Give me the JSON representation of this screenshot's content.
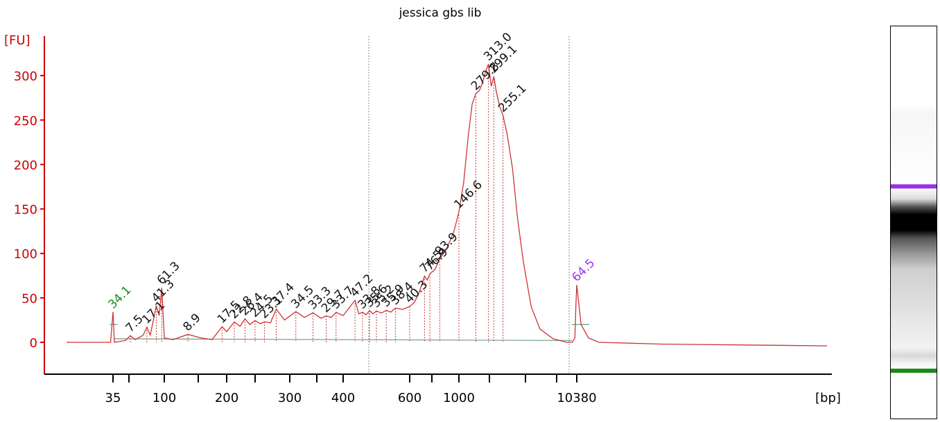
{
  "chart_data": {
    "type": "line",
    "title": "jessica gbs lib",
    "ylabel": "[FU]",
    "xlabel": "[bp]",
    "ylim": [
      -35,
      340
    ],
    "y_ticks": [
      0,
      50,
      100,
      150,
      200,
      250,
      300
    ],
    "x_tick_labels": [
      "35",
      "100",
      "200",
      "300",
      "400",
      "600",
      "1000",
      "10380"
    ],
    "grid": false,
    "colors": {
      "trace": "#cc3333",
      "axis": "#cc0000",
      "baseline": "#6a9a8a",
      "lower_marker": "#1a8a1a",
      "upper_marker": "#9933ee",
      "label": "#111111"
    },
    "peak_labels": [
      {
        "label": "34.1",
        "size_bp": 35,
        "fu": 34.1,
        "color": "green"
      },
      {
        "label": "7.5",
        "size_bp": 50,
        "fu": 7.5
      },
      {
        "label": "17.1",
        "size_bp": 70,
        "fu": 17.1
      },
      {
        "label": "41.3",
        "size_bp": 85,
        "fu": 41.3
      },
      {
        "label": "61.3",
        "size_bp": 95,
        "fu": 61.3
      },
      {
        "label": "8.9",
        "size_bp": 130,
        "fu": 8.9
      },
      {
        "label": "17.5",
        "size_bp": 190,
        "fu": 17.5
      },
      {
        "label": "22.8",
        "size_bp": 210,
        "fu": 22.8
      },
      {
        "label": "26.4",
        "size_bp": 225,
        "fu": 26.4
      },
      {
        "label": "24.5",
        "size_bp": 240,
        "fu": 24.5
      },
      {
        "label": "23.1",
        "size_bp": 255,
        "fu": 23.1
      },
      {
        "label": "37.4",
        "size_bp": 275,
        "fu": 37.4
      },
      {
        "label": "34.5",
        "size_bp": 310,
        "fu": 34.5
      },
      {
        "label": "33.3",
        "size_bp": 340,
        "fu": 33.3
      },
      {
        "label": "29.7",
        "size_bp": 365,
        "fu": 29.7
      },
      {
        "label": "33.7",
        "size_bp": 385,
        "fu": 33.7
      },
      {
        "label": "47.2",
        "size_bp": 430,
        "fu": 47.2
      },
      {
        "label": "33.8",
        "size_bp": 450,
        "fu": 33.8
      },
      {
        "label": "35.6",
        "size_bp": 470,
        "fu": 35.6
      },
      {
        "label": "35.2",
        "size_bp": 490,
        "fu": 35.2
      },
      {
        "label": "35.9",
        "size_bp": 520,
        "fu": 35.9
      },
      {
        "label": "38.4",
        "size_bp": 550,
        "fu": 38.4
      },
      {
        "label": "40.3",
        "size_bp": 600,
        "fu": 40.3
      },
      {
        "label": "74.5",
        "size_bp": 700,
        "fu": 74.5
      },
      {
        "label": "76.9",
        "size_bp": 740,
        "fu": 76.9
      },
      {
        "label": "93.9",
        "size_bp": 820,
        "fu": 93.9
      },
      {
        "label": "146.6",
        "size_bp": 1000,
        "fu": 146.6
      },
      {
        "label": "279.8",
        "size_bp": 1400,
        "fu": 279.8
      },
      {
        "label": "313.0",
        "size_bp": 1800,
        "fu": 313.0
      },
      {
        "label": "299.1",
        "size_bp": 2000,
        "fu": 299.1
      },
      {
        "label": "255.1",
        "size_bp": 2400,
        "fu": 255.1
      },
      {
        "label": "64.5",
        "size_bp": 10380,
        "fu": 64.5,
        "color": "purple"
      }
    ],
    "trace": [
      [
        20,
        0
      ],
      [
        34,
        0
      ],
      [
        35,
        34.1
      ],
      [
        36,
        0
      ],
      [
        45,
        2
      ],
      [
        50,
        7.5
      ],
      [
        55,
        3
      ],
      [
        65,
        8
      ],
      [
        70,
        17.1
      ],
      [
        75,
        8
      ],
      [
        80,
        25
      ],
      [
        85,
        41.3
      ],
      [
        90,
        30
      ],
      [
        95,
        61.3
      ],
      [
        100,
        5
      ],
      [
        110,
        3
      ],
      [
        130,
        8.9
      ],
      [
        150,
        5
      ],
      [
        170,
        3
      ],
      [
        190,
        17.5
      ],
      [
        200,
        12
      ],
      [
        210,
        22.8
      ],
      [
        218,
        18
      ],
      [
        225,
        26.4
      ],
      [
        232,
        20
      ],
      [
        240,
        24.5
      ],
      [
        248,
        21
      ],
      [
        255,
        23.1
      ],
      [
        265,
        22
      ],
      [
        275,
        37.4
      ],
      [
        290,
        25
      ],
      [
        310,
        34.5
      ],
      [
        325,
        28
      ],
      [
        340,
        33.3
      ],
      [
        355,
        27
      ],
      [
        365,
        29.7
      ],
      [
        375,
        28
      ],
      [
        385,
        33.7
      ],
      [
        400,
        30
      ],
      [
        430,
        47.2
      ],
      [
        440,
        32
      ],
      [
        450,
        33.8
      ],
      [
        460,
        31
      ],
      [
        470,
        35.6
      ],
      [
        480,
        32
      ],
      [
        490,
        35.2
      ],
      [
        505,
        33
      ],
      [
        520,
        35.9
      ],
      [
        535,
        34
      ],
      [
        550,
        38.4
      ],
      [
        575,
        37
      ],
      [
        600,
        40.3
      ],
      [
        630,
        45
      ],
      [
        660,
        55
      ],
      [
        700,
        74.5
      ],
      [
        720,
        70
      ],
      [
        740,
        76.9
      ],
      [
        780,
        82
      ],
      [
        820,
        93.9
      ],
      [
        880,
        105
      ],
      [
        950,
        125
      ],
      [
        1000,
        146.6
      ],
      [
        1100,
        180
      ],
      [
        1200,
        230
      ],
      [
        1300,
        268
      ],
      [
        1400,
        279.8
      ],
      [
        1500,
        283
      ],
      [
        1600,
        292
      ],
      [
        1700,
        305
      ],
      [
        1800,
        313.0
      ],
      [
        1900,
        288
      ],
      [
        2000,
        299.1
      ],
      [
        2100,
        282
      ],
      [
        2250,
        265
      ],
      [
        2400,
        255.1
      ],
      [
        2600,
        235
      ],
      [
        2900,
        195
      ],
      [
        3200,
        140
      ],
      [
        3600,
        90
      ],
      [
        4200,
        40
      ],
      [
        5000,
        15
      ],
      [
        6500,
        4
      ],
      [
        8500,
        0
      ],
      [
        9500,
        0
      ],
      [
        10000,
        5
      ],
      [
        10200,
        40
      ],
      [
        10380,
        64.5
      ],
      [
        10500,
        20
      ],
      [
        10700,
        5
      ],
      [
        11000,
        0
      ],
      [
        13000,
        -2
      ],
      [
        16000,
        -3
      ],
      [
        20000,
        -4
      ]
    ]
  },
  "gel": {
    "upper_marker_color": "#9933ee",
    "lower_marker_color": "#1a8a1a"
  }
}
